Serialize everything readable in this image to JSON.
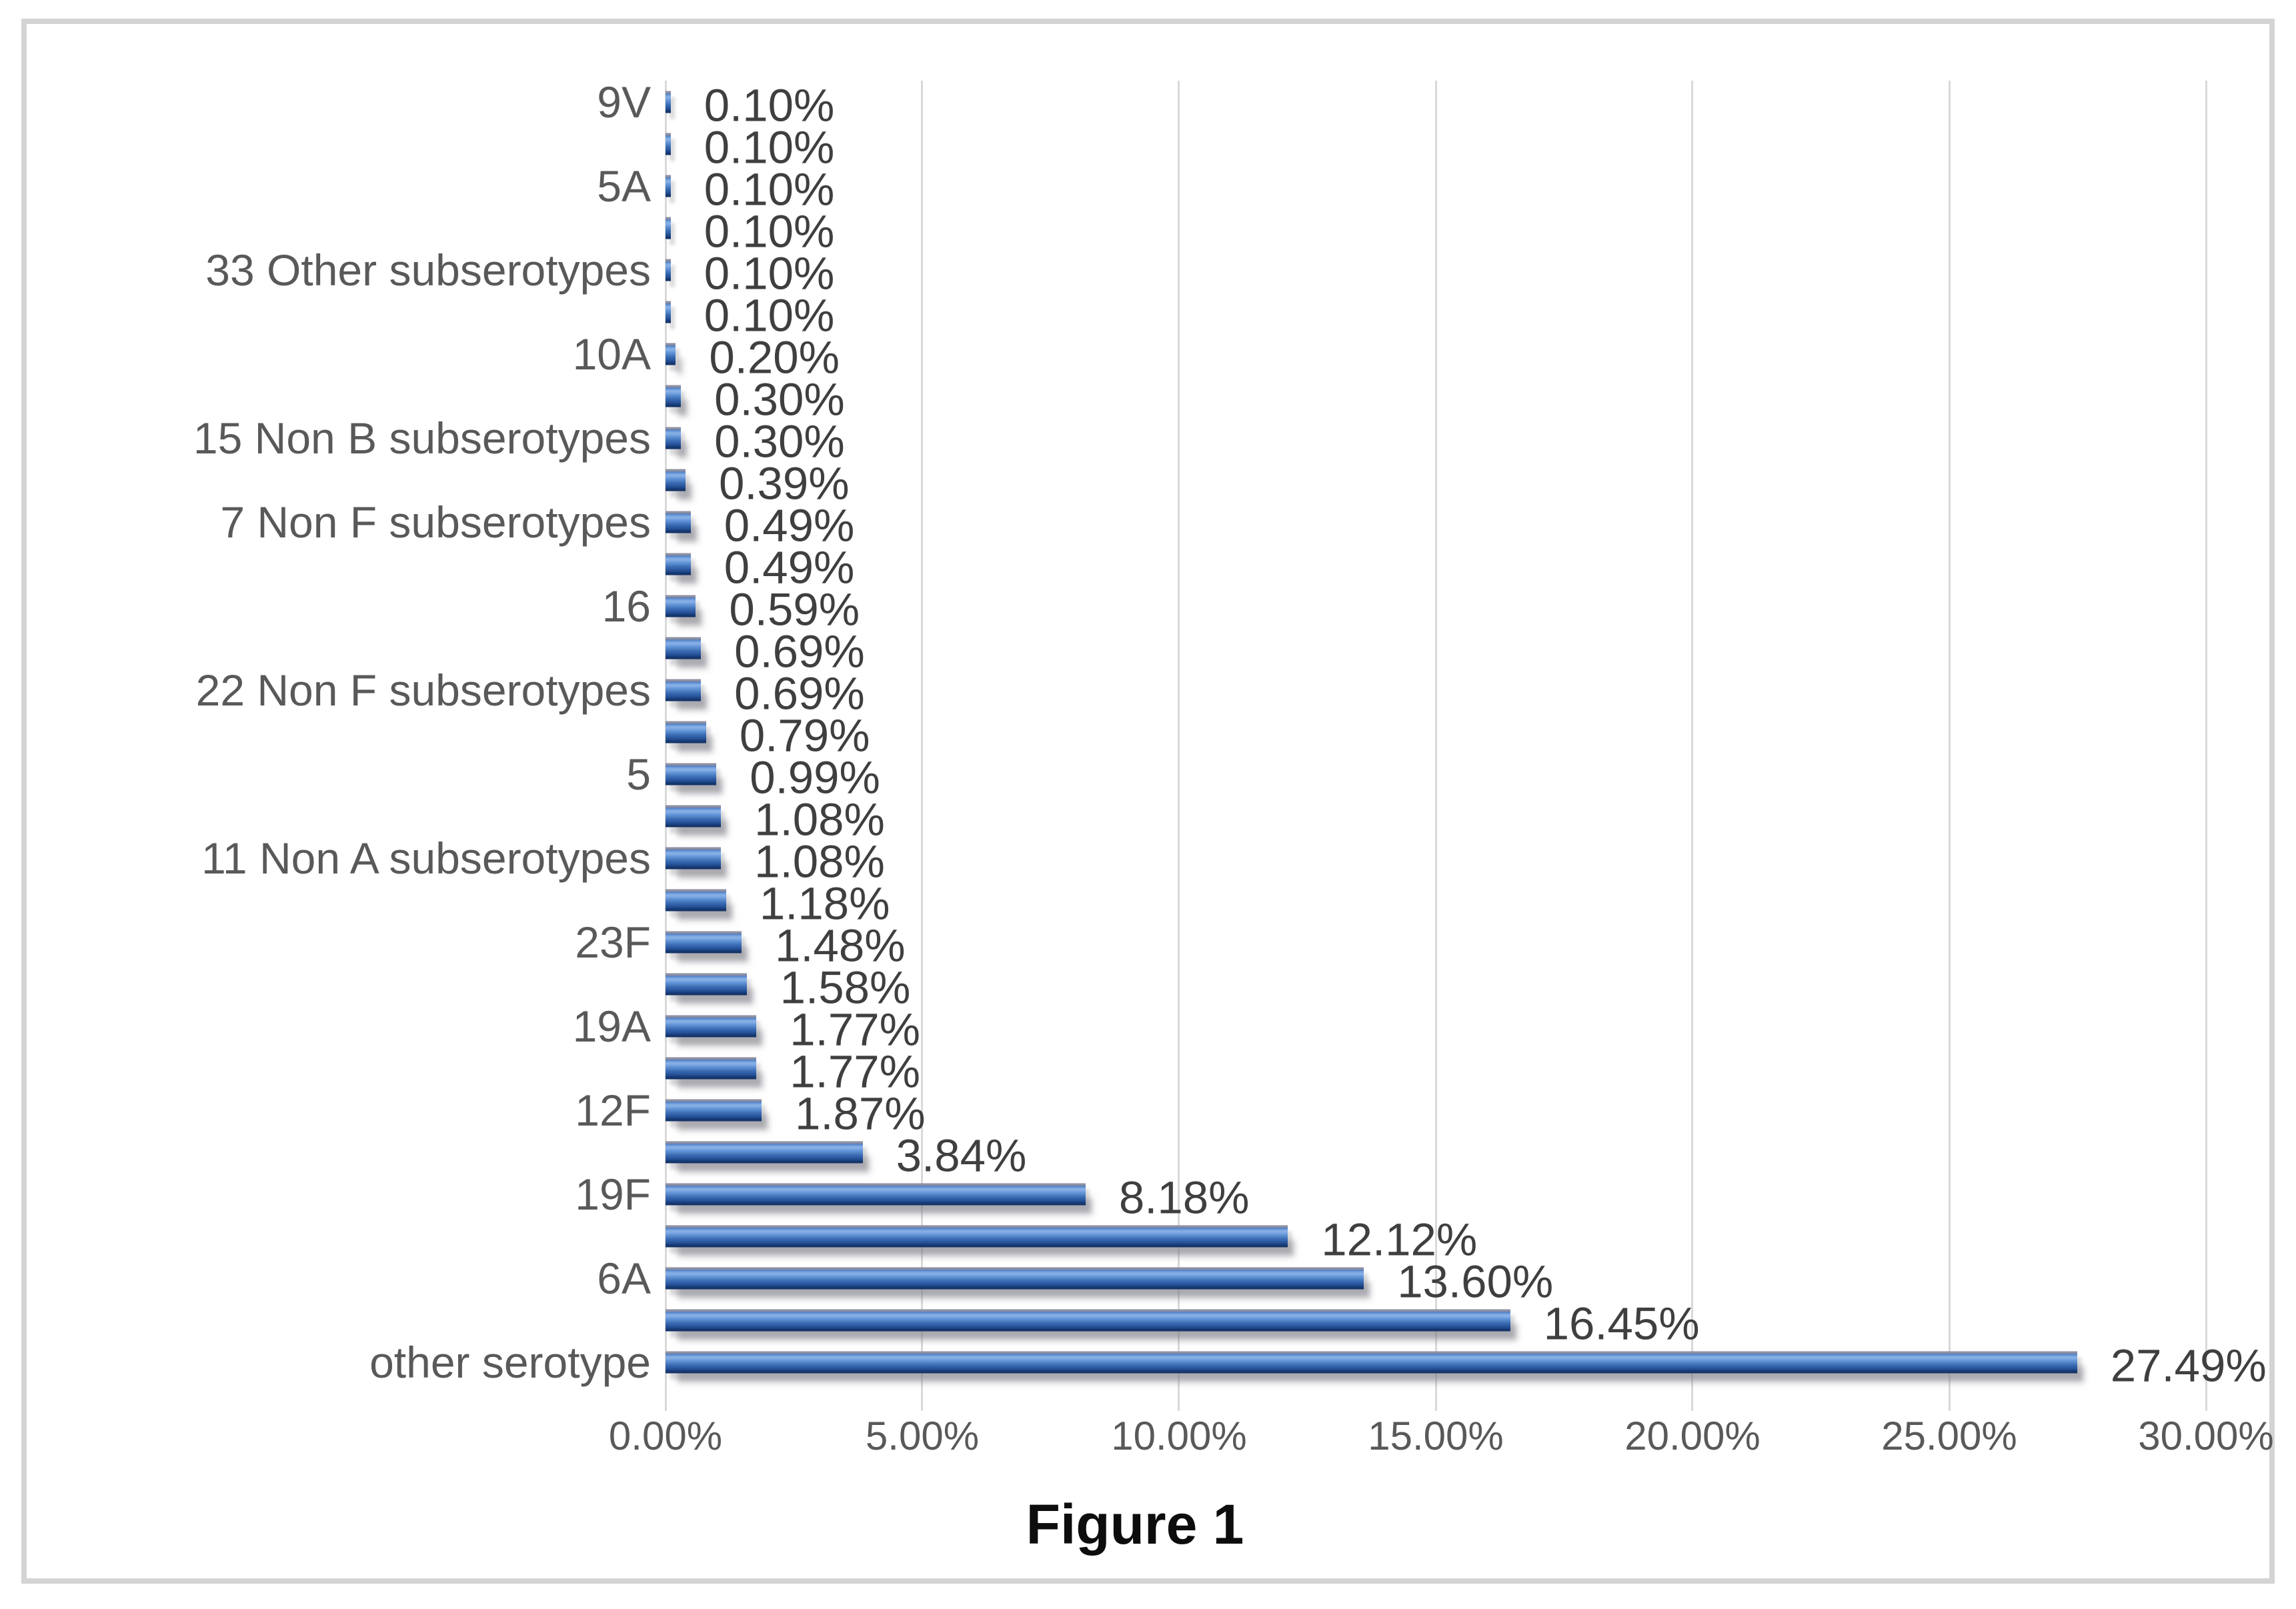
{
  "figure": {
    "caption": "Figure 1"
  },
  "colors": {
    "bar_light": "#88b1e7",
    "bar_mid": "#3b6cb3",
    "bar_dark": "#122f5f",
    "bar_top_edge": "#8f90a3",
    "gridline": "#d9d9d9",
    "frame_border": "#d4d4d4",
    "category_text": "#595959",
    "value_text": "#3f3f3f",
    "title_text": "#0d0d0d"
  },
  "chart_data": {
    "type": "bar",
    "orientation": "horizontal",
    "title": "Figure 1",
    "xlabel": "",
    "ylabel": "",
    "grid": true,
    "legend": false,
    "x_axis": {
      "min": 0,
      "max": 30,
      "step": 5,
      "ticks": [
        "0.00%",
        "5.00%",
        "10.00%",
        "15.00%",
        "20.00%",
        "25.00%",
        "30.00%"
      ]
    },
    "bars": [
      {
        "label": "9V",
        "value": 0.1,
        "value_label": "0.10%"
      },
      {
        "label": "",
        "value": 0.1,
        "value_label": "0.10%"
      },
      {
        "label": "5A",
        "value": 0.1,
        "value_label": "0.10%"
      },
      {
        "label": "",
        "value": 0.1,
        "value_label": "0.10%"
      },
      {
        "label": "33 Other subserotypes",
        "value": 0.1,
        "value_label": "0.10%"
      },
      {
        "label": "",
        "value": 0.1,
        "value_label": "0.10%"
      },
      {
        "label": "10A",
        "value": 0.2,
        "value_label": "0.20%"
      },
      {
        "label": "",
        "value": 0.3,
        "value_label": "0.30%"
      },
      {
        "label": "15 Non B subserotypes",
        "value": 0.3,
        "value_label": "0.30%"
      },
      {
        "label": "",
        "value": 0.39,
        "value_label": "0.39%"
      },
      {
        "label": "7 Non F subserotypes",
        "value": 0.49,
        "value_label": "0.49%"
      },
      {
        "label": "",
        "value": 0.49,
        "value_label": "0.49%"
      },
      {
        "label": "16",
        "value": 0.59,
        "value_label": "0.59%"
      },
      {
        "label": "",
        "value": 0.69,
        "value_label": "0.69%"
      },
      {
        "label": "22 Non F subserotypes",
        "value": 0.69,
        "value_label": "0.69%"
      },
      {
        "label": "",
        "value": 0.79,
        "value_label": "0.79%"
      },
      {
        "label": "5",
        "value": 0.99,
        "value_label": "0.99%"
      },
      {
        "label": "",
        "value": 1.08,
        "value_label": "1.08%"
      },
      {
        "label": "11 Non A subserotypes",
        "value": 1.08,
        "value_label": "1.08%"
      },
      {
        "label": "",
        "value": 1.18,
        "value_label": "1.18%"
      },
      {
        "label": "23F",
        "value": 1.48,
        "value_label": "1.48%"
      },
      {
        "label": "",
        "value": 1.58,
        "value_label": "1.58%"
      },
      {
        "label": "19A",
        "value": 1.77,
        "value_label": "1.77%"
      },
      {
        "label": "",
        "value": 1.77,
        "value_label": "1.77%"
      },
      {
        "label": "12F",
        "value": 1.87,
        "value_label": "1.87%"
      },
      {
        "label": "",
        "value": 3.84,
        "value_label": "3.84%"
      },
      {
        "label": "19F",
        "value": 8.18,
        "value_label": "8.18%"
      },
      {
        "label": "",
        "value": 12.12,
        "value_label": "12.12%"
      },
      {
        "label": "6A",
        "value": 13.6,
        "value_label": "13.60%"
      },
      {
        "label": "",
        "value": 16.45,
        "value_label": "16.45%"
      },
      {
        "label": "other serotype",
        "value": 27.49,
        "value_label": "27.49%"
      }
    ]
  }
}
